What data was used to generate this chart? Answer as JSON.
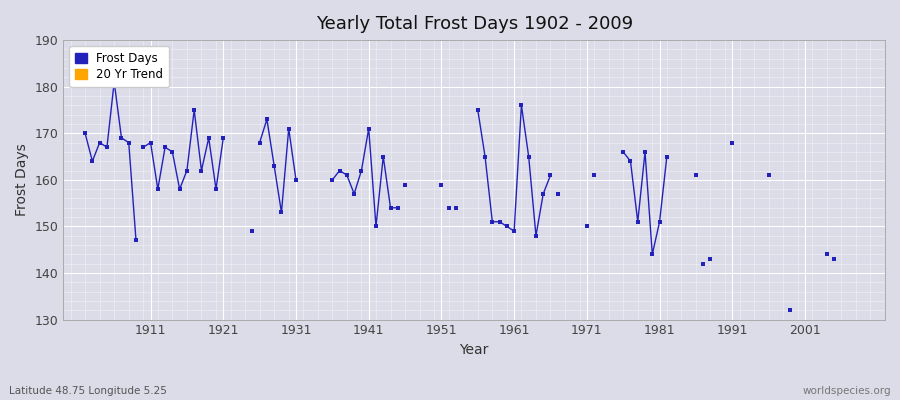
{
  "title": "Yearly Total Frost Days 1902 - 2009",
  "xlabel": "Year",
  "ylabel": "Frost Days",
  "ylim": [
    130,
    190
  ],
  "yticks": [
    130,
    140,
    150,
    160,
    170,
    180,
    190
  ],
  "xticks": [
    1911,
    1921,
    1931,
    1941,
    1951,
    1961,
    1971,
    1981,
    1991,
    2001
  ],
  "xlim": [
    1899,
    2012
  ],
  "background_color": "#dcdce8",
  "line_color": "#2222bb",
  "marker_color": "#2222bb",
  "subtitle_text": "Latitude 48.75 Longitude 5.25",
  "watermark": "worldspecies.org",
  "connected_segments": [
    {
      "years": [
        1902,
        1903,
        1904,
        1905,
        1906,
        1907,
        1908,
        1909
      ],
      "values": [
        170,
        164,
        168,
        167,
        181,
        169,
        168,
        147
      ]
    },
    {
      "years": [
        1910,
        1911,
        1912,
        1913,
        1914,
        1915,
        1916,
        1917,
        1918,
        1919,
        1920,
        1921
      ],
      "values": [
        167,
        168,
        158,
        167,
        166,
        158,
        162,
        175,
        162,
        169,
        158,
        169
      ]
    },
    {
      "years": [
        1926,
        1927,
        1928,
        1929,
        1930,
        1931
      ],
      "values": [
        168,
        173,
        163,
        153,
        171,
        160
      ]
    },
    {
      "years": [
        1936,
        1937,
        1938,
        1939,
        1940,
        1941,
        1942,
        1943,
        1944,
        1945
      ],
      "values": [
        160,
        162,
        161,
        157,
        162,
        171,
        150,
        165,
        154,
        154
      ]
    },
    {
      "years": [
        1956,
        1957,
        1958,
        1959,
        1960,
        1961,
        1962,
        1963,
        1964,
        1965,
        1966
      ],
      "values": [
        175,
        165,
        151,
        151,
        150,
        149,
        176,
        165,
        148,
        157,
        161
      ]
    },
    {
      "years": [
        1976,
        1977,
        1978,
        1979,
        1980,
        1981,
        1982
      ],
      "values": [
        166,
        164,
        151,
        166,
        144,
        151,
        165
      ]
    }
  ],
  "isolated_points": {
    "1925": 149,
    "1946": 159,
    "1951": 159,
    "1952": 154,
    "1953": 154,
    "1967": 157,
    "1971": 150,
    "1972": 161,
    "1986": 161,
    "1987": 142,
    "1988": 143,
    "1991": 168,
    "1996": 161,
    "1999": 132,
    "2004": 144,
    "2005": 143
  }
}
